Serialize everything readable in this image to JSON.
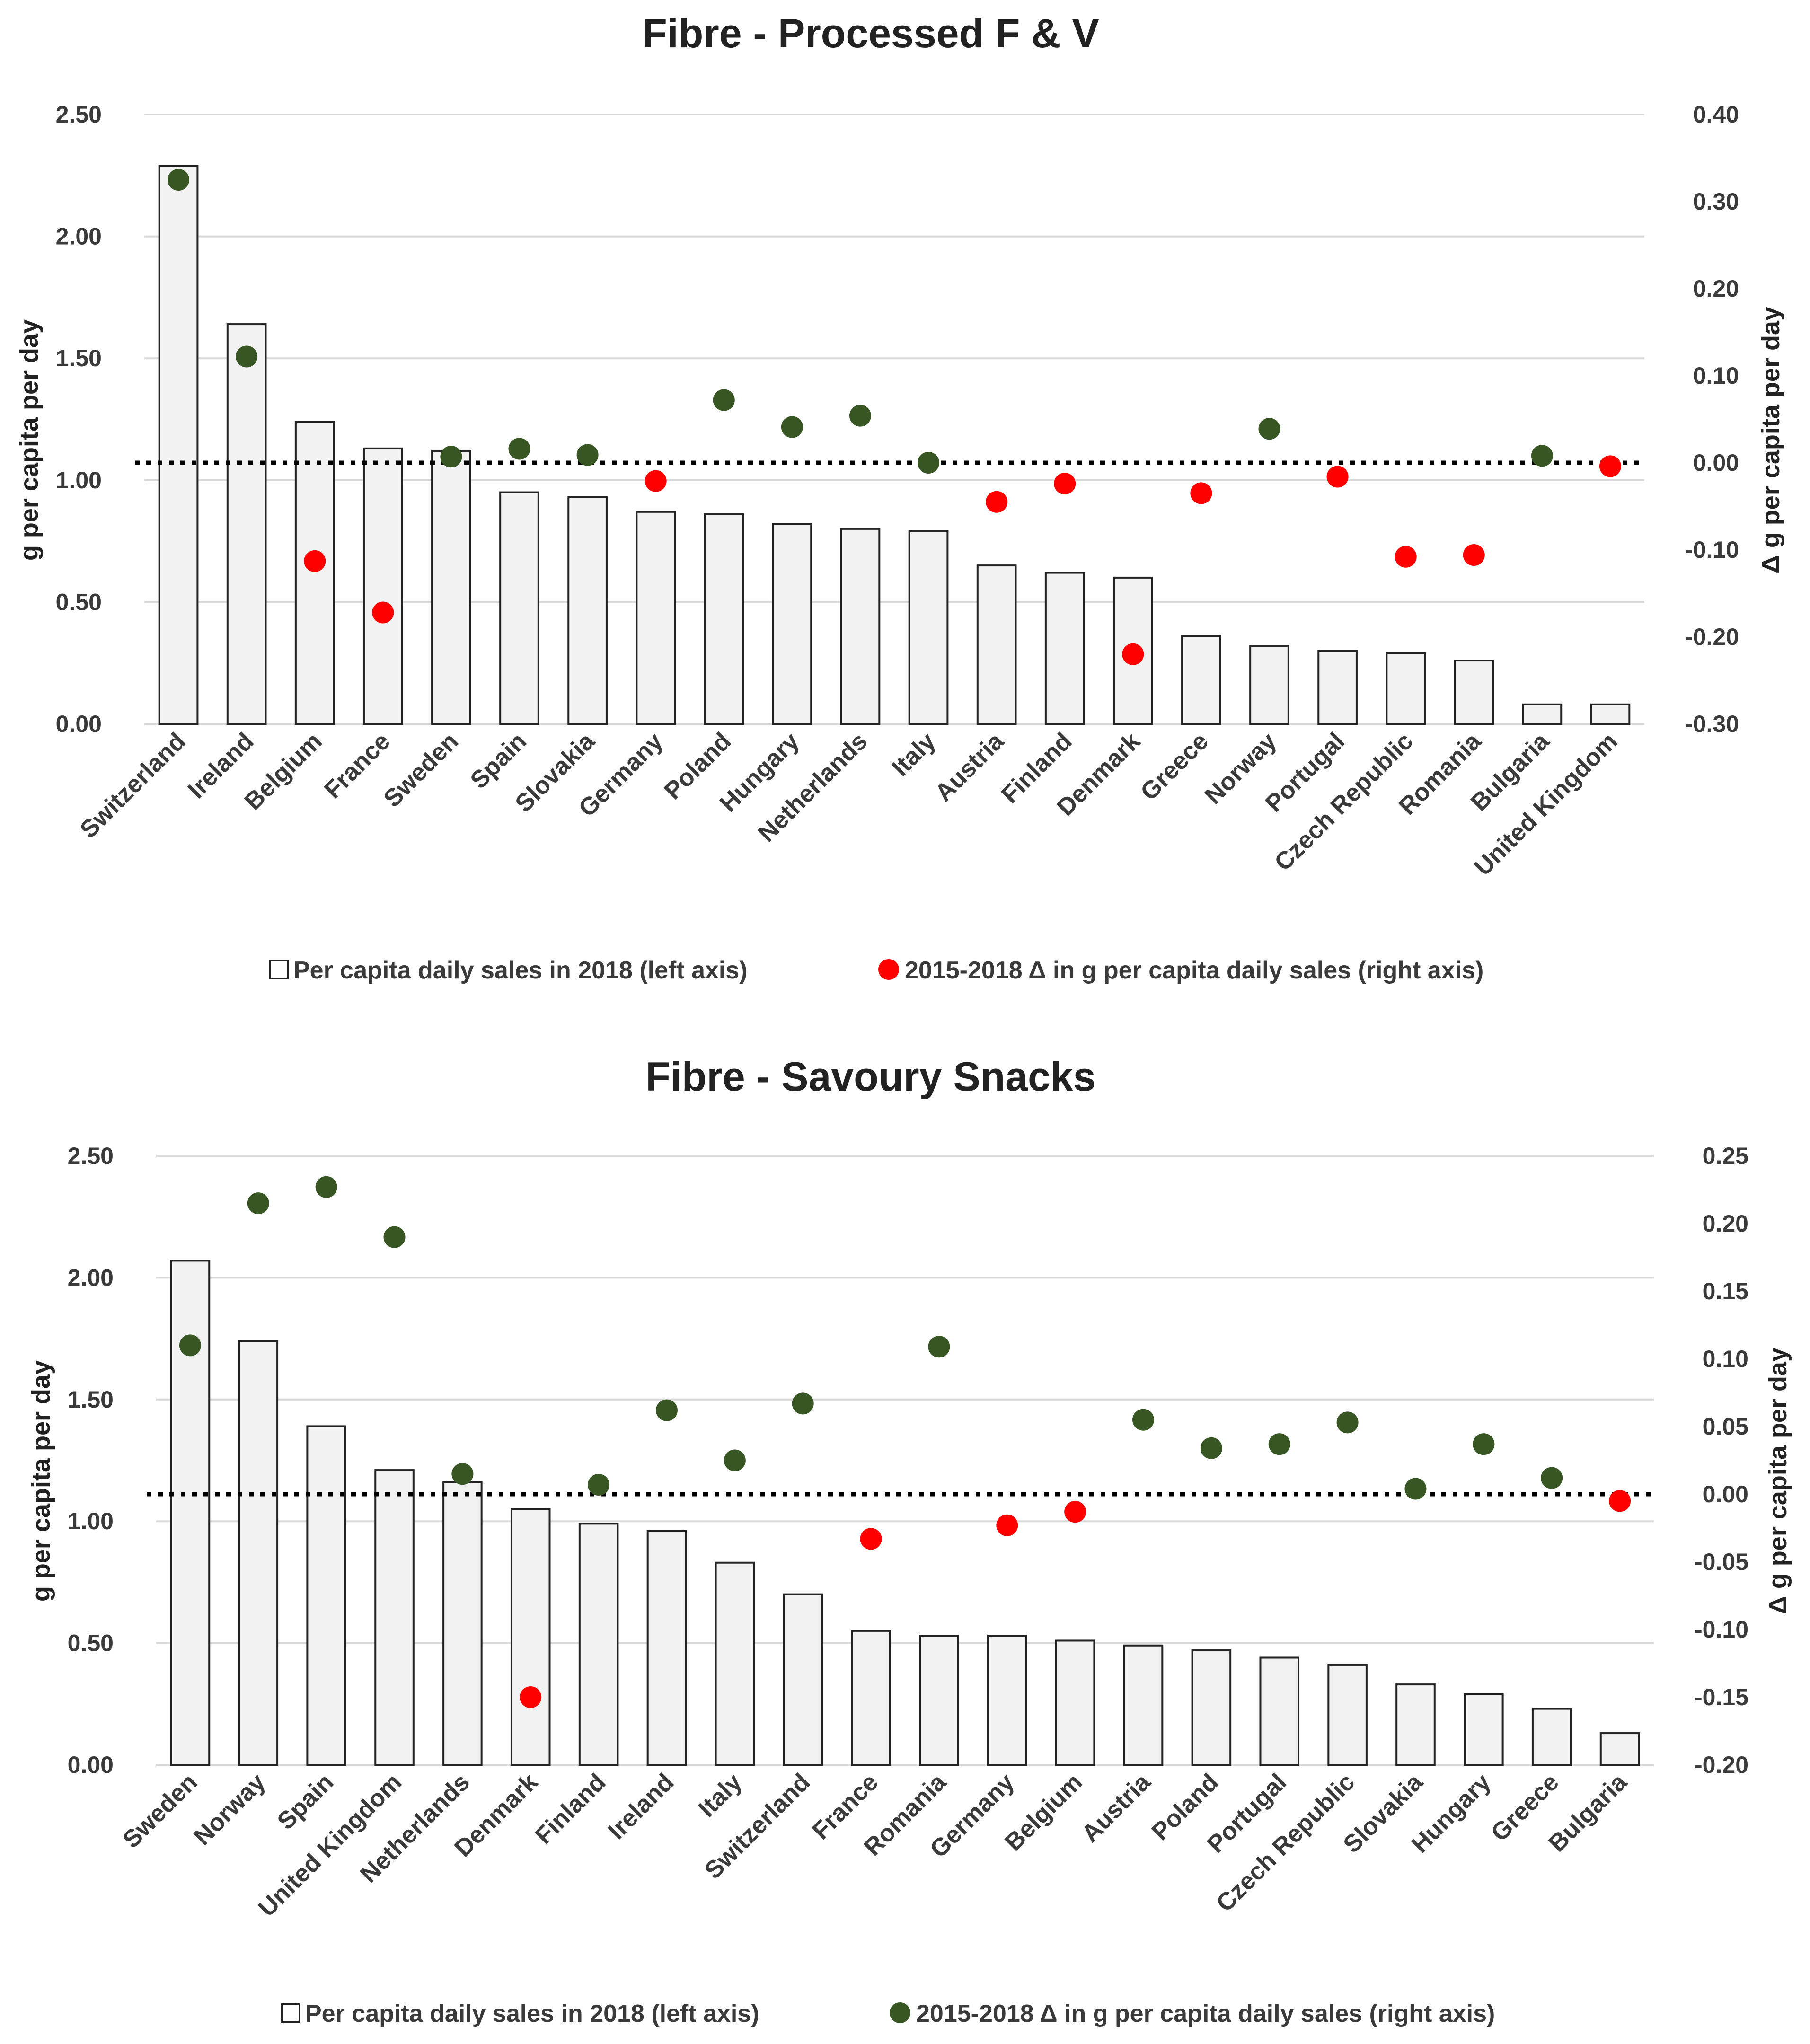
{
  "chart_data": [
    {
      "type": "bar",
      "title": "Fibre - Processed F & V",
      "ylabel": "g per capita per day",
      "y2label": "Δ g per capita per day",
      "ylim": [
        0,
        2.5
      ],
      "y2lim": [
        -0.3,
        0.4
      ],
      "yticks": [
        "2.50",
        "2.00",
        "1.50",
        "1.00",
        "0.50",
        "0.00"
      ],
      "y2ticks": [
        "0.40",
        "0.30",
        "0.20",
        "0.10",
        "0.00",
        "-0.10",
        "-0.20",
        "-0.30"
      ],
      "categories": [
        "Switzerland",
        "Ireland",
        "Belgium",
        "France",
        "Sweden",
        "Spain",
        "Slovakia",
        "Germany",
        "Poland",
        "Hungary",
        "Netherlands",
        "Italy",
        "Austria",
        "Finland",
        "Denmark",
        "Greece",
        "Norway",
        "Portugal",
        "Czech Republic",
        "Romania",
        "Bulgaria",
        "United Kingdom"
      ],
      "series": [
        {
          "name": "Per capita daily sales in 2018 (left axis)",
          "axis": "left",
          "values": [
            2.29,
            1.64,
            1.24,
            1.13,
            1.12,
            0.95,
            0.93,
            0.87,
            0.86,
            0.82,
            0.8,
            0.79,
            0.65,
            0.62,
            0.6,
            0.36,
            0.32,
            0.3,
            0.29,
            0.26,
            0.08,
            0.08
          ]
        },
        {
          "name": "2015-2018  Δ in g per capita daily sales (right axis)",
          "axis": "right",
          "values": [
            0.325,
            0.122,
            -0.113,
            -0.172,
            0.007,
            0.016,
            0.009,
            -0.021,
            0.072,
            0.041,
            0.054,
            0.0,
            -0.045,
            -0.024,
            -0.22,
            -0.035,
            0.039,
            -0.016,
            -0.108,
            -0.106,
            0.008,
            -0.004
          ]
        }
      ],
      "legend": {
        "bar_label": "Per capita daily sales in 2018 (left axis)",
        "dot_label": "2015-2018  Δ in g per capita daily sales (right axis)",
        "dot_color": "#ff0000",
        "position": "bottom"
      }
    },
    {
      "type": "bar",
      "title": "Fibre - Savoury Snacks",
      "ylabel": "g per capita per day",
      "y2label": "Δ g per capita per day",
      "ylim": [
        0,
        2.5
      ],
      "y2lim": [
        -0.2,
        0.25
      ],
      "yticks": [
        "2.50",
        "2.00",
        "1.50",
        "1.00",
        "0.50",
        "0.00"
      ],
      "y2ticks": [
        "0.25",
        "0.20",
        "0.15",
        "0.10",
        "0.05",
        "0.00",
        "-0.05",
        "-0.10",
        "-0.15",
        "-0.20"
      ],
      "categories": [
        "Sweden",
        "Norway",
        "Spain",
        "United Kingdom",
        "Netherlands",
        "Denmark",
        "Finland",
        "Ireland",
        "Italy",
        "Switzerland",
        "France",
        "Romania",
        "Germany",
        "Belgium",
        "Austria",
        "Poland",
        "Portugal",
        "Czech Republic",
        "Slovakia",
        "Hungary",
        "Greece",
        "Bulgaria"
      ],
      "series": [
        {
          "name": "Per capita daily sales in 2018 (left axis)",
          "axis": "left",
          "values": [
            2.07,
            1.74,
            1.39,
            1.21,
            1.16,
            1.05,
            0.99,
            0.96,
            0.83,
            0.7,
            0.55,
            0.53,
            0.53,
            0.51,
            0.49,
            0.47,
            0.44,
            0.41,
            0.33,
            0.29,
            0.23,
            0.13
          ]
        },
        {
          "name": "2015-2018  Δ in g per capita daily sales (right axis)",
          "axis": "right",
          "values": [
            0.11,
            0.215,
            0.227,
            0.19,
            0.015,
            -0.15,
            0.007,
            0.062,
            0.025,
            0.067,
            -0.033,
            0.109,
            -0.023,
            -0.013,
            0.055,
            0.034,
            0.037,
            0.053,
            0.004,
            0.037,
            0.012,
            -0.005
          ]
        }
      ],
      "legend": {
        "bar_label": "Per capita daily sales in 2018 (left axis)",
        "dot_label": "2015-2018  Δ in g per capita daily sales (right axis)",
        "dot_color": "#375623",
        "position": "bottom"
      }
    }
  ],
  "colors": {
    "increase": "#375623",
    "decrease": "#ff0000",
    "bar_fill": "#f2f2f2",
    "bar_stroke": "#222222"
  }
}
